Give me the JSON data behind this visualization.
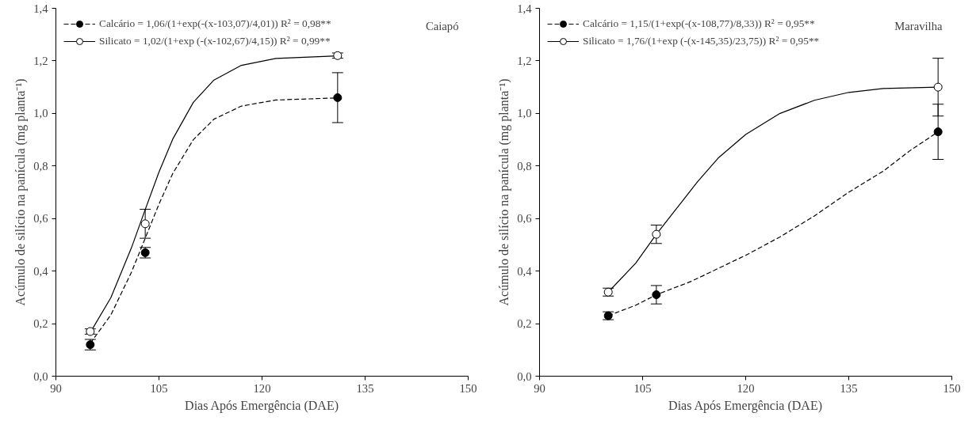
{
  "chart_data": [
    {
      "type": "line",
      "xlabel": "Dias Após Emergência (DAE)",
      "ylabel": "Acúmulo de silício na panícula (mg planta⁻¹)",
      "xlim": [
        90,
        150
      ],
      "xticks": [
        90,
        105,
        120,
        135,
        150
      ],
      "ylim": [
        0,
        1.4
      ],
      "yticks": [
        {
          "value": 0,
          "label": "0,0"
        },
        {
          "value": 0.2,
          "label": "0,2"
        },
        {
          "value": 0.4,
          "label": "0,4"
        },
        {
          "value": 0.6,
          "label": "0,6"
        },
        {
          "value": 0.8,
          "label": "0,8"
        },
        {
          "value": 1.0,
          "label": "1,0"
        },
        {
          "value": 1.2,
          "label": "1,2"
        },
        {
          "value": 1.4,
          "label": "1,4"
        }
      ],
      "grid": false,
      "legend": "top left",
      "annotations": [
        "Caiapó"
      ],
      "series": [
        {
          "type": "line",
          "name": "Calcário = 1,06/(1+exp(-(x-103,07)/4,01)) R² = 0,98**",
          "color": "#000000",
          "line_style": "dashed",
          "x": [
            95,
            98,
            101,
            103,
            105,
            107,
            110,
            113,
            117,
            122,
            131
          ],
          "values": [
            0.125,
            0.233,
            0.396,
            0.525,
            0.655,
            0.771,
            0.9,
            0.978,
            1.028,
            1.051,
            1.059
          ]
        },
        {
          "type": "scatter",
          "color": "#000000",
          "marker": "circle",
          "x": [
            95,
            103,
            131
          ],
          "values": [
            0.12,
            0.47,
            1.06
          ],
          "errors": [
            0.02,
            0.02,
            0.095
          ]
        },
        {
          "type": "line",
          "name": "Silicato = 1,02/(1+exp (-(x-102,67)/4,15)) R² = 0,99**",
          "color": "#000000",
          "line_style": "solid",
          "x": [
            95,
            98,
            101,
            103,
            105,
            107,
            110,
            113,
            117,
            122,
            131
          ],
          "values": [
            0.166,
            0.299,
            0.489,
            0.634,
            0.777,
            0.902,
            1.042,
            1.127,
            1.183,
            1.209,
            1.219
          ]
        },
        {
          "type": "scatter",
          "color": "#ffffff",
          "marker": "circle",
          "x": [
            95,
            103,
            131
          ],
          "values": [
            0.17,
            0.58,
            1.22
          ],
          "errors": [
            0.01,
            0.055,
            0.01
          ]
        }
      ]
    },
    {
      "type": "line",
      "xlabel": "Dias Após Emergência (DAE)",
      "ylabel": "Acúmulo de silício na panícula (mg planta⁻¹)",
      "xlim": [
        90,
        150
      ],
      "xticks": [
        90,
        105,
        120,
        135,
        150
      ],
      "ylim": [
        0,
        1.4
      ],
      "yticks": [
        {
          "value": 0,
          "label": "0,0"
        },
        {
          "value": 0.2,
          "label": "0,2"
        },
        {
          "value": 0.4,
          "label": "0,4"
        },
        {
          "value": 0.6,
          "label": "0,6"
        },
        {
          "value": 0.8,
          "label": "0,8"
        },
        {
          "value": 1.0,
          "label": "1,0"
        },
        {
          "value": 1.2,
          "label": "1,2"
        },
        {
          "value": 1.4,
          "label": "1,4"
        }
      ],
      "grid": false,
      "legend": "top left",
      "annotations": [
        "Maravilha"
      ],
      "series": [
        {
          "type": "line",
          "name": "Calcário = 1,15/(1+exp(-(x-108,77)/8,33)) R² = 0,95**",
          "color": "#000000",
          "line_style": "dashed",
          "x": [
            100,
            104,
            107,
            112,
            116,
            120,
            125,
            130,
            135,
            140,
            144,
            148
          ],
          "values": [
            0.23,
            0.27,
            0.31,
            0.36,
            0.41,
            0.46,
            0.53,
            0.61,
            0.7,
            0.78,
            0.86,
            0.93
          ]
        },
        {
          "type": "scatter",
          "color": "#000000",
          "marker": "circle",
          "x": [
            100,
            107,
            148
          ],
          "values": [
            0.23,
            0.31,
            0.93
          ],
          "errors": [
            0.015,
            0.035,
            0.105
          ]
        },
        {
          "type": "line",
          "name": "Silicato = 1,76/(1+exp (-(x-145,35)/23,75)) R² = 0,95**",
          "color": "#000000",
          "line_style": "solid",
          "x": [
            100,
            104,
            107,
            110,
            113,
            116,
            120,
            125,
            130,
            135,
            140,
            148
          ],
          "values": [
            0.32,
            0.43,
            0.54,
            0.64,
            0.74,
            0.83,
            0.92,
            1.0,
            1.05,
            1.08,
            1.095,
            1.1
          ]
        },
        {
          "type": "scatter",
          "color": "#ffffff",
          "marker": "circle",
          "x": [
            100,
            107,
            148
          ],
          "values": [
            0.32,
            0.54,
            1.1
          ],
          "errors": [
            0.015,
            0.035,
            0.11
          ]
        }
      ]
    }
  ]
}
